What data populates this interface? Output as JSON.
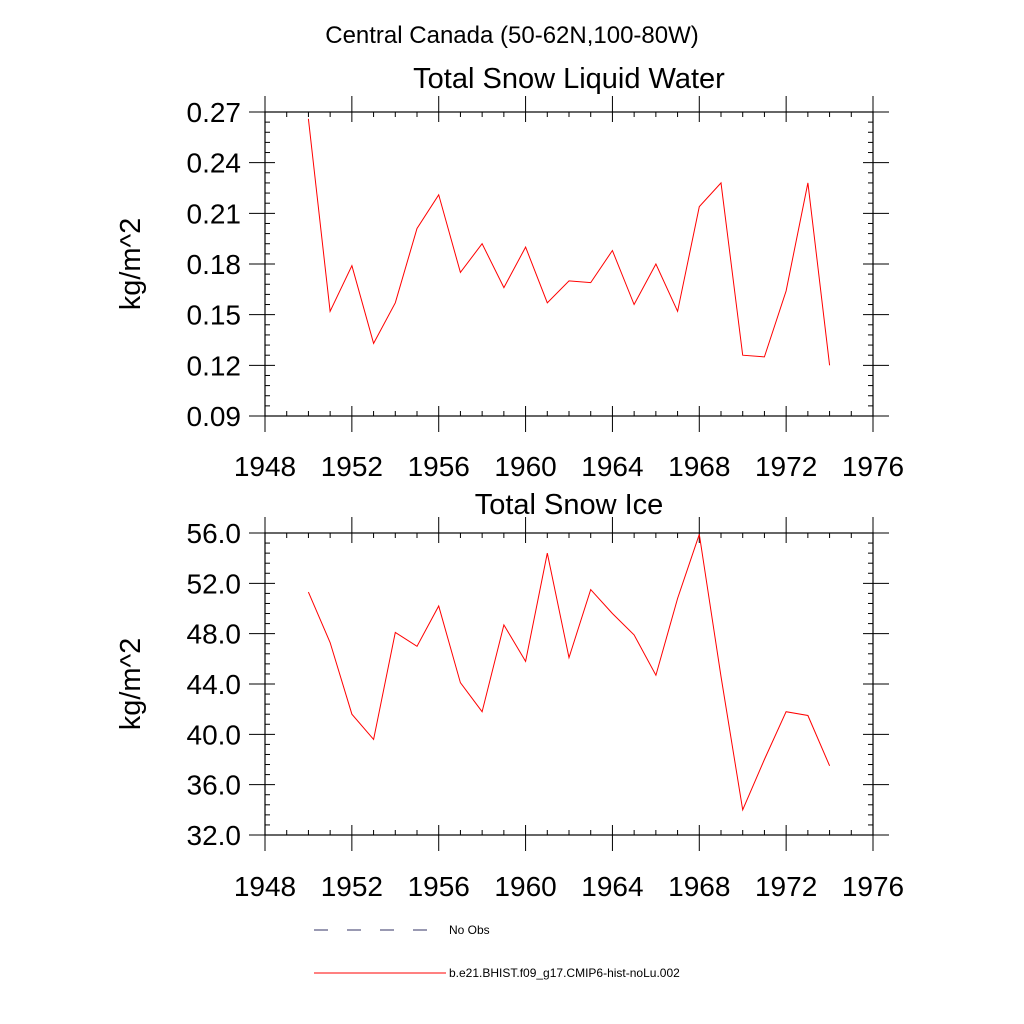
{
  "figure": {
    "title": "Central Canada (50-62N,100-80W)"
  },
  "chart_data": [
    {
      "type": "line",
      "title": "Total Snow Liquid Water",
      "xlabel": "",
      "ylabel": "kg/m^2",
      "xlim": [
        1948,
        1976
      ],
      "ylim": [
        0.09,
        0.27
      ],
      "xticks": [
        "1948",
        "1952",
        "1956",
        "1960",
        "1964",
        "1968",
        "1972",
        "1976"
      ],
      "yticks": [
        "0.09",
        "0.12",
        "0.15",
        "0.18",
        "0.21",
        "0.24",
        "0.27"
      ],
      "grid": false,
      "x": [
        1950,
        1951,
        1952,
        1953,
        1954,
        1955,
        1956,
        1957,
        1958,
        1959,
        1960,
        1961,
        1962,
        1963,
        1964,
        1965,
        1966,
        1967,
        1968,
        1969,
        1970,
        1971,
        1972,
        1973,
        1974
      ],
      "series": [
        {
          "name": "b.e21.BHIST.f09_g17.CMIP6-hist-noLu.002",
          "color": "#ff0000",
          "values": [
            0.266,
            0.152,
            0.179,
            0.133,
            0.157,
            0.201,
            0.221,
            0.175,
            0.192,
            0.166,
            0.19,
            0.157,
            0.17,
            0.169,
            0.188,
            0.156,
            0.18,
            0.152,
            0.214,
            0.228,
            0.126,
            0.125,
            0.164,
            0.228,
            0.12
          ]
        }
      ]
    },
    {
      "type": "line",
      "title": "Total Snow Ice",
      "xlabel": "",
      "ylabel": "kg/m^2",
      "xlim": [
        1948,
        1976
      ],
      "ylim": [
        32,
        56
      ],
      "xticks": [
        "1948",
        "1952",
        "1956",
        "1960",
        "1964",
        "1968",
        "1972",
        "1976"
      ],
      "yticks": [
        "32.0",
        "36.0",
        "40.0",
        "44.0",
        "48.0",
        "52.0",
        "56.0"
      ],
      "grid": false,
      "x": [
        1950,
        1951,
        1952,
        1953,
        1954,
        1955,
        1956,
        1957,
        1958,
        1959,
        1960,
        1961,
        1962,
        1963,
        1964,
        1965,
        1966,
        1967,
        1968,
        1969,
        1970,
        1971,
        1972,
        1973,
        1974
      ],
      "series": [
        {
          "name": "b.e21.BHIST.f09_g17.CMIP6-hist-noLu.002",
          "color": "#ff0000",
          "values": [
            51.3,
            47.3,
            41.6,
            39.6,
            48.1,
            47.0,
            50.2,
            44.1,
            41.8,
            48.7,
            45.8,
            54.4,
            46.1,
            51.5,
            49.6,
            47.9,
            44.7,
            50.8,
            55.9,
            44.6,
            34.0,
            38.0,
            41.8,
            41.5,
            37.5
          ]
        }
      ]
    }
  ],
  "legend": {
    "placement": "bottom",
    "items": [
      {
        "label": "No Obs",
        "color": "#333366",
        "style": "dashed"
      },
      {
        "label": "b.e21.BHIST.f09_g17.CMIP6-hist-noLu.002",
        "color": "#ff0000",
        "style": "solid"
      }
    ]
  }
}
